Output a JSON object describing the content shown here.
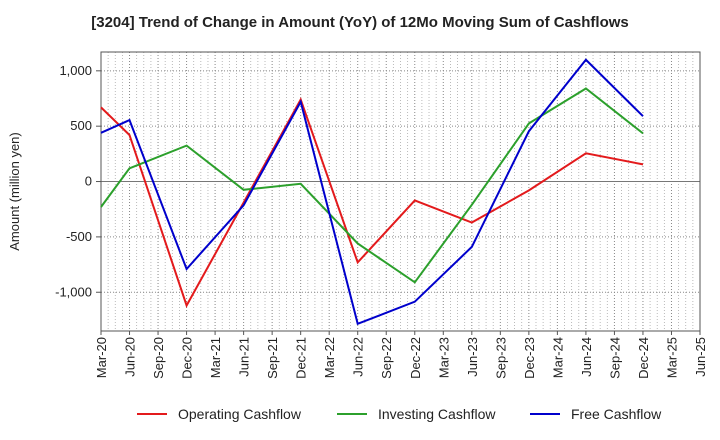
{
  "chart_data": {
    "type": "line",
    "title": "[3204]  Trend of Change in Amount (YoY) of 12Mo Moving Sum of Cashflows",
    "xlabel": "",
    "ylabel": "Amount (million yen)",
    "ylim": [
      -1350,
      1170
    ],
    "yticks": [
      1000,
      500,
      0,
      -500,
      -1000
    ],
    "ytick_labels": [
      "1,000",
      "500",
      "0",
      "-500",
      "-1,000"
    ],
    "categories": [
      "Mar-20",
      "Jun-20",
      "Sep-20",
      "Dec-20",
      "Mar-21",
      "Jun-21",
      "Sep-21",
      "Dec-21",
      "Mar-22",
      "Jun-22",
      "Sep-22",
      "Dec-22",
      "Mar-23",
      "Jun-23",
      "Sep-23",
      "Dec-23",
      "Mar-24",
      "Jun-24",
      "Sep-24",
      "Dec-24",
      "Mar-25",
      "Jun-25"
    ],
    "grid": true,
    "legend_position": "bottom",
    "series": [
      {
        "name": "Operating Cashflow",
        "color": "#e31a1c",
        "values": [
          670,
          420,
          null,
          -1120,
          null,
          -190,
          null,
          740,
          null,
          -730,
          null,
          -170,
          null,
          -370,
          null,
          -80,
          null,
          255,
          null,
          155,
          null,
          null
        ]
      },
      {
        "name": "Investing Cashflow",
        "color": "#2ca02c",
        "values": [
          -230,
          120,
          null,
          325,
          null,
          -75,
          null,
          -20,
          null,
          -560,
          null,
          -910,
          null,
          -210,
          null,
          525,
          null,
          840,
          null,
          435,
          null,
          null
        ]
      },
      {
        "name": "Free Cashflow",
        "color": "#0000cc",
        "values": [
          440,
          555,
          null,
          -790,
          null,
          -215,
          null,
          720,
          null,
          -1285,
          null,
          -1085,
          null,
          -590,
          null,
          455,
          null,
          1100,
          null,
          590,
          null,
          null
        ]
      }
    ]
  }
}
